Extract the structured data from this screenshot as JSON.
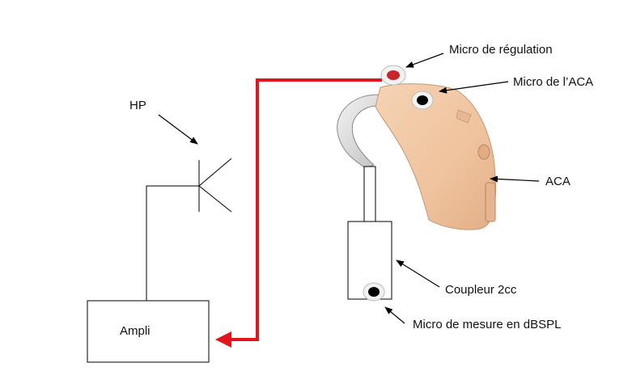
{
  "labels": {
    "hp": "HP",
    "ampli": "Ampli",
    "micro_regulation": "Micro de régulation",
    "micro_aca": "Micro de l’ACA",
    "aca": "ACA",
    "coupleur": "Coupleur 2cc",
    "micro_mesure": "Micro de mesure en dBSPL"
  },
  "colors": {
    "signal_line": "#e3141b",
    "hearing_aid_body": "#f0c9a4",
    "hearing_aid_shadow": "#d9a982",
    "regulation_mic": "#c9262c",
    "outline": "#000000"
  }
}
